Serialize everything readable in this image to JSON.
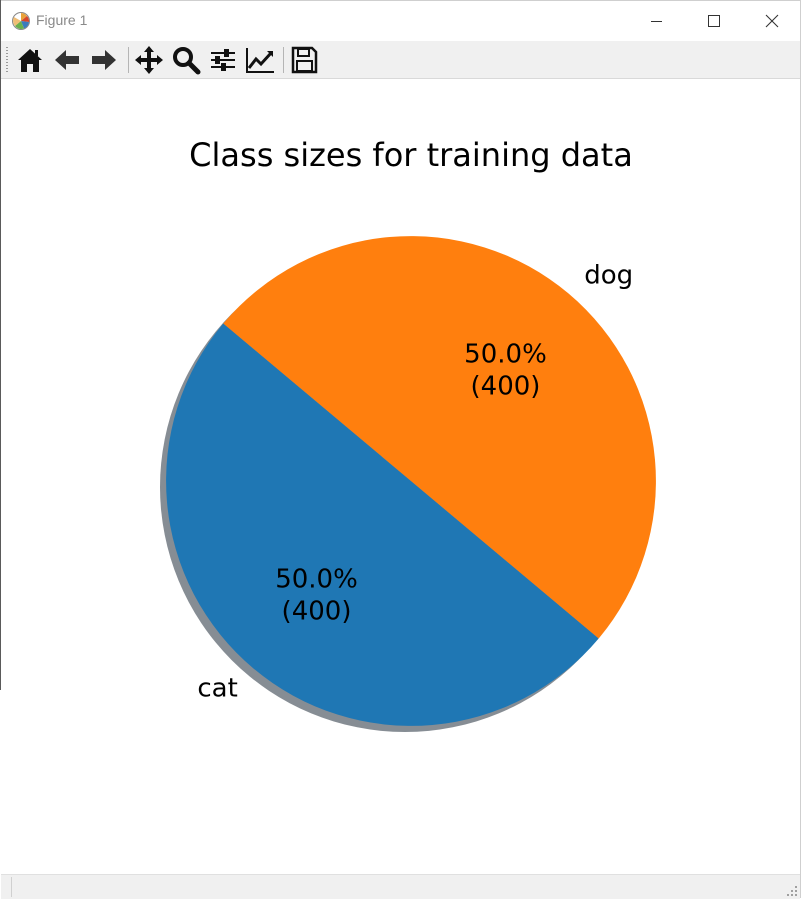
{
  "window": {
    "title": "Figure 1",
    "minimize_icon": "minimize-icon",
    "maximize_icon": "maximize-icon",
    "close_icon": "close-icon"
  },
  "toolbar": {
    "buttons": [
      {
        "name": "home",
        "icon": "home-icon"
      },
      {
        "name": "back",
        "icon": "arrow-left-icon"
      },
      {
        "name": "forward",
        "icon": "arrow-right-icon"
      },
      {
        "name": "pan",
        "icon": "move-icon"
      },
      {
        "name": "zoom",
        "icon": "magnifier-icon"
      },
      {
        "name": "configure-subplots",
        "icon": "sliders-icon"
      },
      {
        "name": "edit-axis",
        "icon": "line-chart-icon"
      },
      {
        "name": "save",
        "icon": "floppy-disk-icon"
      }
    ]
  },
  "chart_data": {
    "type": "pie",
    "title": "Class sizes for training data",
    "shadow": true,
    "start_angle_deg": 140,
    "slices": [
      {
        "label": "cat",
        "value": 400,
        "percent_text": "50.0%",
        "count_text": "(400)",
        "color": "#1f77b4"
      },
      {
        "label": "dog",
        "value": 400,
        "percent_text": "50.0%",
        "count_text": "(400)",
        "color": "#ff7f0e"
      }
    ]
  }
}
